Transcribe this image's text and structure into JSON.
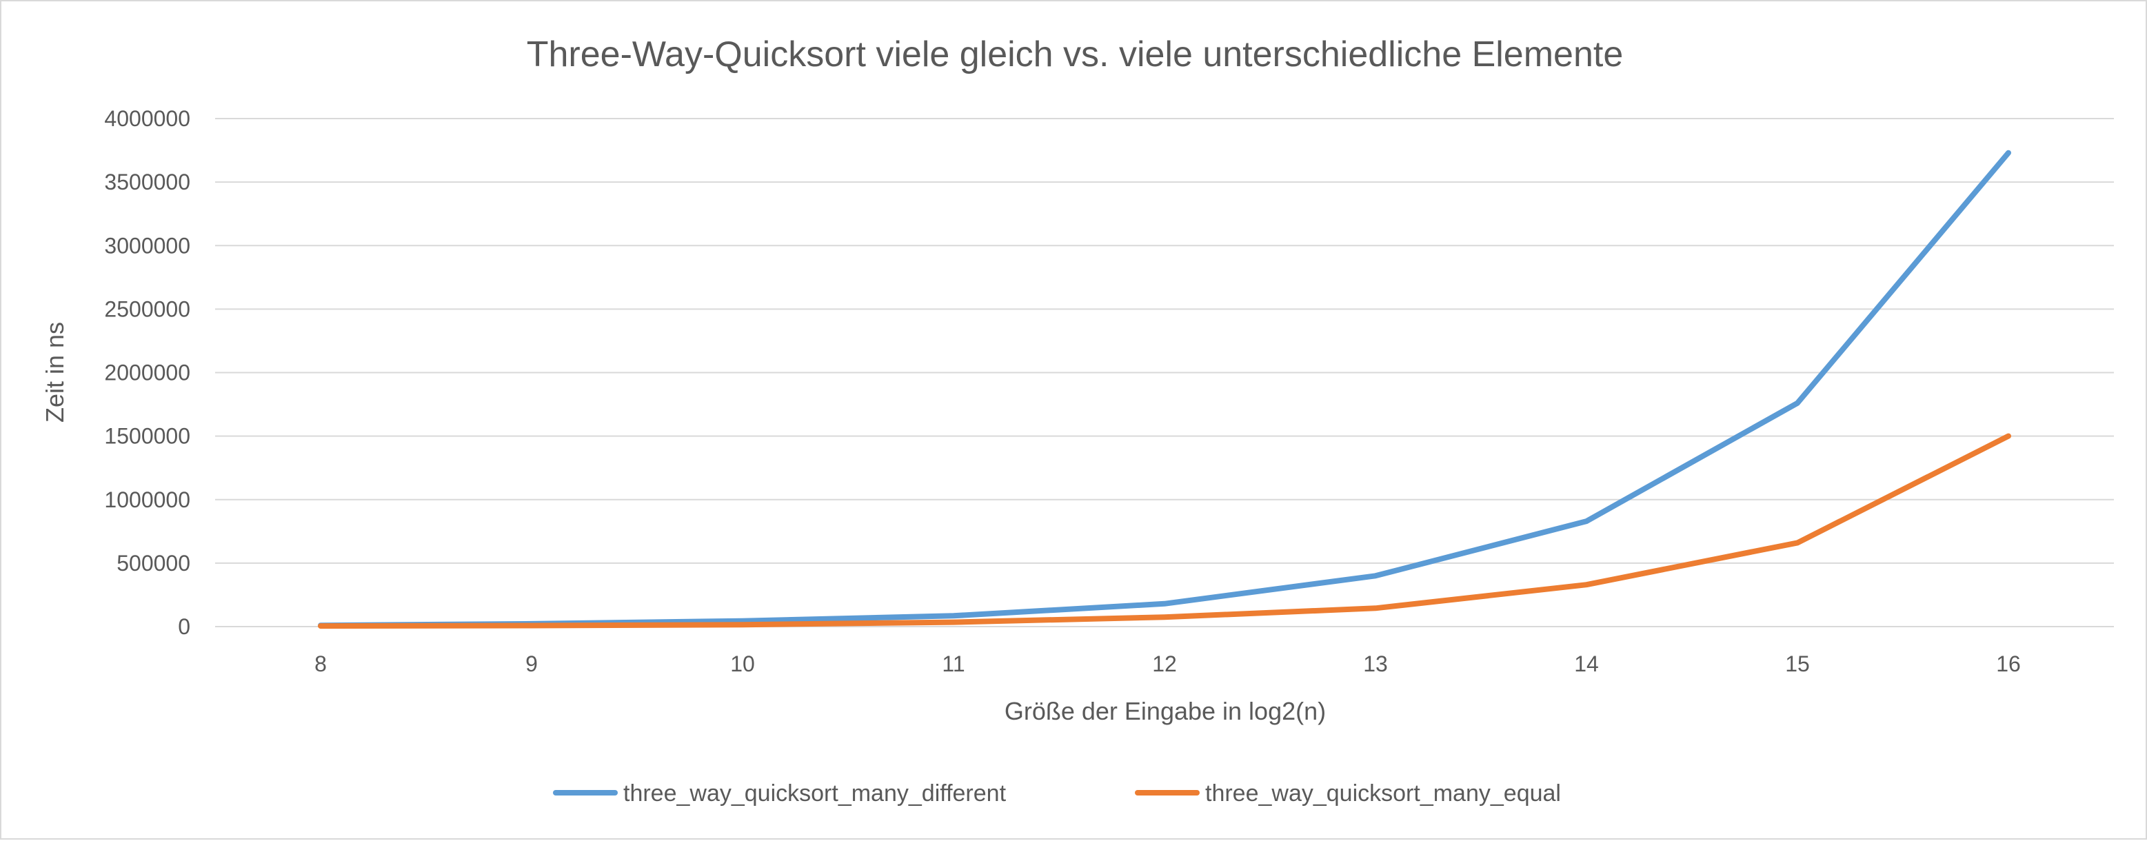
{
  "chart_data": {
    "type": "line",
    "title": "Three-Way-Quicksort viele gleich vs. viele unterschiedliche Elemente",
    "xlabel": "Größe der Eingabe in log2(n)",
    "ylabel": "Zeit in ns",
    "x": [
      8,
      9,
      10,
      11,
      12,
      13,
      14,
      15,
      16
    ],
    "ylim": [
      0,
      4000000
    ],
    "yticks": [
      0,
      500000,
      1000000,
      1500000,
      2000000,
      2500000,
      3000000,
      3500000,
      4000000
    ],
    "grid": true,
    "legend_position": "bottom",
    "series": [
      {
        "name": "three_way_quicksort_many_different",
        "color": "#5b9bd5",
        "values": [
          10000,
          22000,
          45000,
          85000,
          180000,
          400000,
          830000,
          1760000,
          3730000
        ]
      },
      {
        "name": "three_way_quicksort_many_equal",
        "color": "#ed7d31",
        "values": [
          5000,
          8000,
          15000,
          35000,
          75000,
          145000,
          330000,
          660000,
          1500000
        ]
      }
    ]
  }
}
